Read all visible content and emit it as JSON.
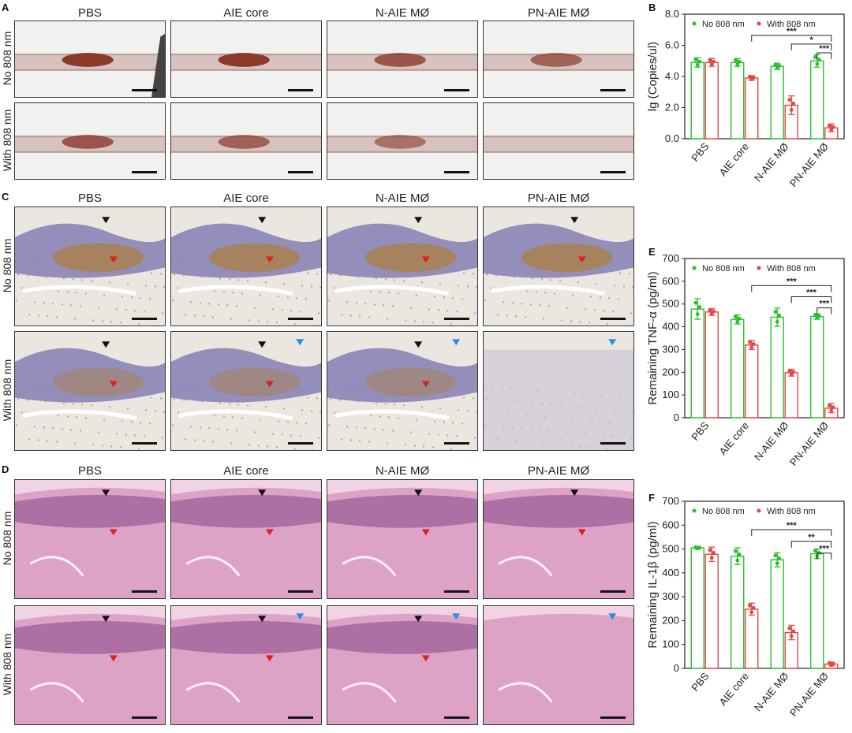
{
  "panels": {
    "A": {
      "label": "A"
    },
    "B": {
      "label": "B"
    },
    "C": {
      "label": "C"
    },
    "D": {
      "label": "D"
    },
    "E": {
      "label": "E"
    },
    "F": {
      "label": "F"
    }
  },
  "groups": [
    "PBS",
    "AIE core",
    "N-AIE MØ",
    "PN-AIE MØ"
  ],
  "row_labels": [
    "No 808 nm",
    "With 808 nm"
  ],
  "colors": {
    "no808": "#2bbf2b",
    "with808": "#e84545"
  },
  "chart_data": [
    {
      "id": "B",
      "type": "bar",
      "categories": [
        "PBS",
        "AIE core",
        "N-AIE MØ",
        "PN-AIE MØ"
      ],
      "ylabel": "lg (Copies/ul)",
      "ylim": [
        0,
        8
      ],
      "yticks": [
        "0.0",
        "2.0",
        "4.0",
        "6.0",
        "8.0"
      ],
      "legend": [
        "No 808 nm",
        "With 808 nm"
      ],
      "series": [
        {
          "name": "No 808 nm",
          "values": [
            4.9,
            4.9,
            4.65,
            5.0
          ],
          "err": [
            0.3,
            0.25,
            0.2,
            0.4
          ]
        },
        {
          "name": "With 808 nm",
          "values": [
            4.9,
            3.9,
            2.15,
            0.7
          ],
          "err": [
            0.25,
            0.15,
            0.6,
            0.25
          ]
        }
      ],
      "significance": [
        "***",
        "*",
        "***"
      ]
    },
    {
      "id": "E",
      "type": "bar",
      "categories": [
        "PBS",
        "AIE core",
        "N-AIE MØ",
        "PN-AIE MØ"
      ],
      "ylabel": "Remaining TNF-α (pg/ml)",
      "ylim": [
        0,
        700
      ],
      "yticks": [
        "0",
        "100",
        "200",
        "300",
        "400",
        "500",
        "600",
        "700"
      ],
      "legend": [
        "No 808 nm",
        "With 808 nm"
      ],
      "series": [
        {
          "name": "No 808 nm",
          "values": [
            478,
            432,
            442,
            445
          ],
          "err": [
            45,
            20,
            40,
            12
          ]
        },
        {
          "name": "With 808 nm",
          "values": [
            465,
            320,
            198,
            42
          ],
          "err": [
            15,
            20,
            15,
            20
          ]
        }
      ],
      "significance": [
        "***",
        "***",
        "***"
      ]
    },
    {
      "id": "F",
      "type": "bar",
      "categories": [
        "PBS",
        "AIE core",
        "N-AIE MØ",
        "PN-AIE MØ"
      ],
      "ylabel": "Remaining IL-1β (pg/ml)",
      "ylim": [
        0,
        700
      ],
      "yticks": [
        "0",
        "100",
        "200",
        "300",
        "400",
        "500",
        "600",
        "700"
      ],
      "legend": [
        "No 808 nm",
        "With 808 nm"
      ],
      "series": [
        {
          "name": "No 808 nm",
          "values": [
            505,
            470,
            455,
            480
          ],
          "err": [
            5,
            35,
            30,
            20
          ]
        },
        {
          "name": "With 808 nm",
          "values": [
            478,
            248,
            150,
            18
          ],
          "err": [
            30,
            25,
            30,
            8
          ]
        }
      ],
      "significance": [
        "***",
        "**",
        "***"
      ]
    }
  ]
}
